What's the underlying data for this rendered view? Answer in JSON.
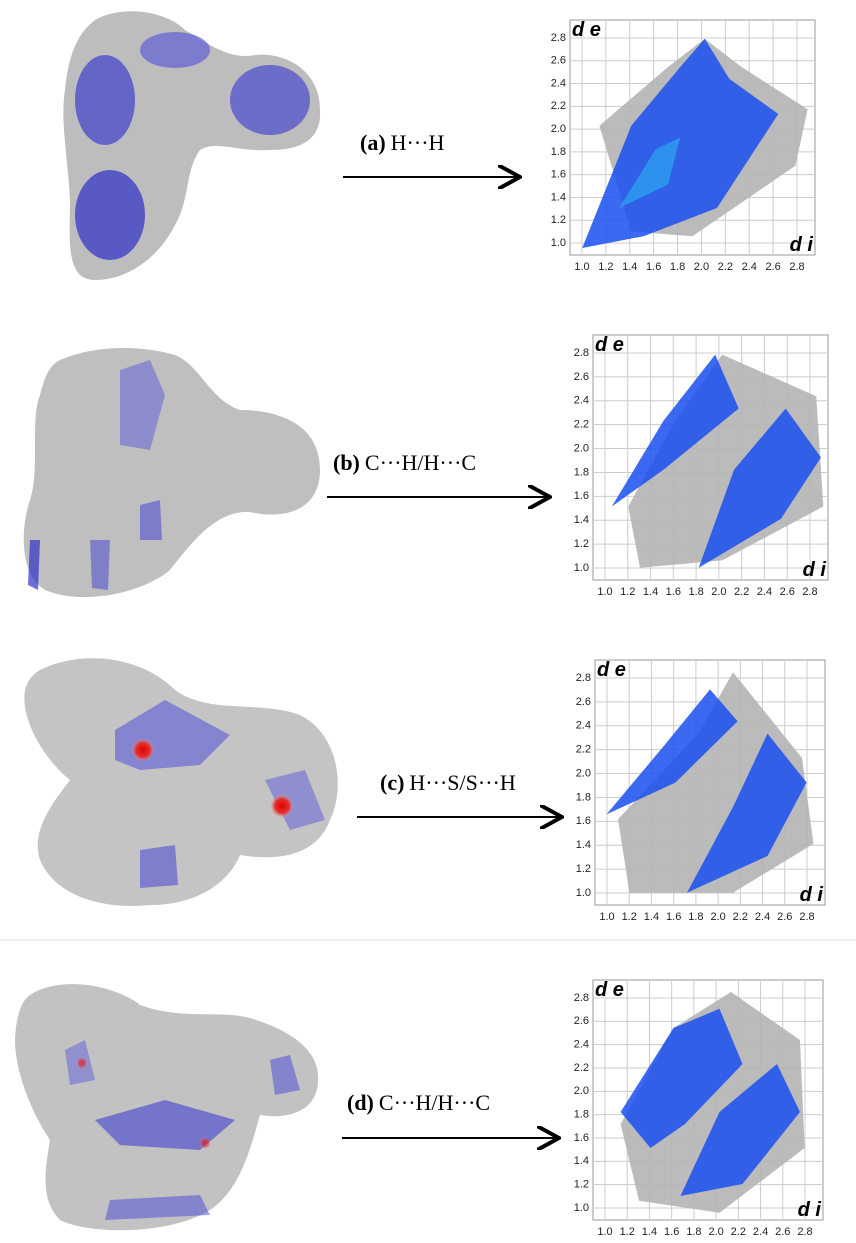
{
  "panels": [
    {
      "label": "(a)",
      "interaction": "H···H",
      "plot": {
        "ylabel": "d e",
        "xlabel": "d i",
        "xticks": [
          {
            "value": 1.0,
            "label": "1.0"
          },
          {
            "value": 1.2,
            "label": "1.2"
          },
          {
            "value": 1.4,
            "label": "1.4"
          },
          {
            "value": 1.6,
            "label": "1.6"
          },
          {
            "value": 1.8,
            "label": "1.8"
          },
          {
            "value": 2.0,
            "label": "2.0"
          },
          {
            "value": 2.2,
            "label": "2.2"
          },
          {
            "value": 2.4,
            "label": "2.4"
          },
          {
            "value": 2.6,
            "label": "2.6"
          },
          {
            "value": 2.8,
            "label": "2.8"
          }
        ],
        "yticks": [
          {
            "value": 1.0,
            "label": "1.0"
          },
          {
            "value": 1.2,
            "label": "1.2"
          },
          {
            "value": 1.4,
            "label": "1.4"
          },
          {
            "value": 1.6,
            "label": "1.6"
          },
          {
            "value": 1.8,
            "label": "1.8"
          },
          {
            "value": 2.0,
            "label": "2.0"
          },
          {
            "value": 2.2,
            "label": "2.2"
          },
          {
            "value": 2.4,
            "label": "2.4"
          },
          {
            "value": 2.6,
            "label": "2.6"
          },
          {
            "value": 2.8,
            "label": "2.8"
          }
        ]
      }
    },
    {
      "label": "(b)",
      "interaction": "C···H/H···C",
      "plot": {
        "ylabel": "d e",
        "xlabel": "d i",
        "xticks": [
          {
            "value": 1.0,
            "label": "1.0"
          },
          {
            "value": 1.2,
            "label": "1.2"
          },
          {
            "value": 1.4,
            "label": "1.4"
          },
          {
            "value": 1.6,
            "label": "1.6"
          },
          {
            "value": 1.8,
            "label": "1.8"
          },
          {
            "value": 2.0,
            "label": "2.0"
          },
          {
            "value": 2.2,
            "label": "2.2"
          },
          {
            "value": 2.4,
            "label": "2.4"
          },
          {
            "value": 2.6,
            "label": "2.6"
          },
          {
            "value": 2.8,
            "label": "2.8"
          }
        ],
        "yticks": [
          {
            "value": 1.0,
            "label": "1.0"
          },
          {
            "value": 1.2,
            "label": "1.2"
          },
          {
            "value": 1.4,
            "label": "1.4"
          },
          {
            "value": 1.6,
            "label": "1.6"
          },
          {
            "value": 1.8,
            "label": "1.8"
          },
          {
            "value": 2.0,
            "label": "2.0"
          },
          {
            "value": 2.2,
            "label": "2.2"
          },
          {
            "value": 2.4,
            "label": "2.4"
          },
          {
            "value": 2.6,
            "label": "2.6"
          },
          {
            "value": 2.8,
            "label": "2.8"
          }
        ]
      }
    },
    {
      "label": "(c)",
      "interaction": "H···S/S···H",
      "plot": {
        "ylabel": "d e",
        "xlabel": "d i",
        "xticks": [
          {
            "value": 1.0,
            "label": "1.0"
          },
          {
            "value": 1.2,
            "label": "1.2"
          },
          {
            "value": 1.4,
            "label": "1.4"
          },
          {
            "value": 1.6,
            "label": "1.6"
          },
          {
            "value": 1.8,
            "label": "1.8"
          },
          {
            "value": 2.0,
            "label": "2.0"
          },
          {
            "value": 2.2,
            "label": "2.2"
          },
          {
            "value": 2.4,
            "label": "2.4"
          },
          {
            "value": 2.6,
            "label": "2.6"
          },
          {
            "value": 2.8,
            "label": "2.8"
          }
        ],
        "yticks": [
          {
            "value": 1.0,
            "label": "1.0"
          },
          {
            "value": 1.2,
            "label": "1.2"
          },
          {
            "value": 1.4,
            "label": "1.4"
          },
          {
            "value": 1.6,
            "label": "1.6"
          },
          {
            "value": 1.8,
            "label": "1.8"
          },
          {
            "value": 2.0,
            "label": "2.0"
          },
          {
            "value": 2.2,
            "label": "2.2"
          },
          {
            "value": 2.4,
            "label": "2.4"
          },
          {
            "value": 2.6,
            "label": "2.6"
          },
          {
            "value": 2.8,
            "label": "2.8"
          }
        ]
      }
    },
    {
      "label": "(d)",
      "interaction": "C···H/H···C",
      "plot": {
        "ylabel": "d e",
        "xlabel": "d i",
        "xticks": [
          {
            "value": 1.0,
            "label": "1.0"
          },
          {
            "value": 1.2,
            "label": "1.2"
          },
          {
            "value": 1.4,
            "label": "1.4"
          },
          {
            "value": 1.6,
            "label": "1.6"
          },
          {
            "value": 1.8,
            "label": "1.8"
          },
          {
            "value": 2.0,
            "label": "2.0"
          },
          {
            "value": 2.2,
            "label": "2.2"
          },
          {
            "value": 2.4,
            "label": "2.4"
          },
          {
            "value": 2.6,
            "label": "2.6"
          },
          {
            "value": 2.8,
            "label": "2.8"
          }
        ],
        "yticks": [
          {
            "value": 1.0,
            "label": "1.0"
          },
          {
            "value": 1.2,
            "label": "1.2"
          },
          {
            "value": 1.4,
            "label": "1.4"
          },
          {
            "value": 1.6,
            "label": "1.6"
          },
          {
            "value": 1.8,
            "label": "1.8"
          },
          {
            "value": 2.0,
            "label": "2.0"
          },
          {
            "value": 2.2,
            "label": "2.2"
          },
          {
            "value": 2.4,
            "label": "2.4"
          },
          {
            "value": 2.6,
            "label": "2.6"
          },
          {
            "value": 2.8,
            "label": "2.8"
          }
        ]
      }
    }
  ]
}
